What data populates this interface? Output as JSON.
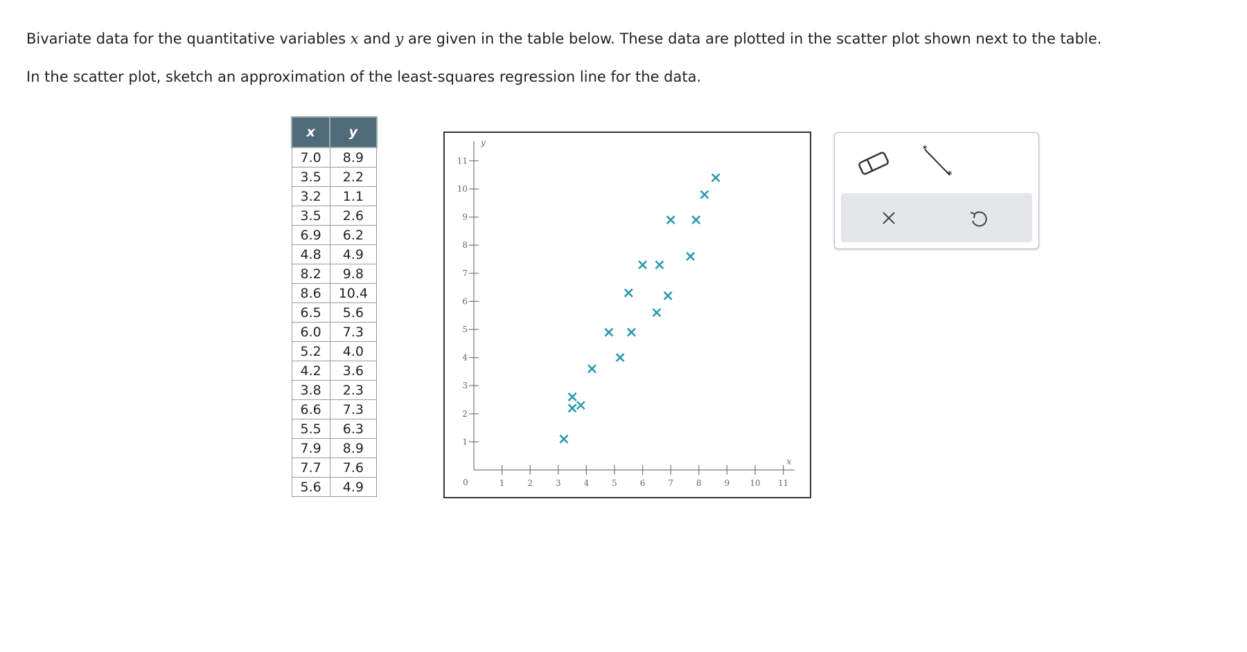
{
  "prompt": {
    "line1": [
      "Bivariate data for the quantitative variables ",
      "x",
      " and ",
      "y",
      " are given in the table below. These data are plotted in the scatter plot shown next to the table."
    ],
    "line2": "In the scatter plot, sketch an approximation of the least-squares regression line for the data."
  },
  "table": {
    "header": [
      "x",
      "y"
    ],
    "rows": [
      [
        "7.0",
        "8.9"
      ],
      [
        "3.5",
        "2.2"
      ],
      [
        "3.2",
        "1.1"
      ],
      [
        "3.5",
        "2.6"
      ],
      [
        "6.9",
        "6.2"
      ],
      [
        "4.8",
        "4.9"
      ],
      [
        "8.2",
        "9.8"
      ],
      [
        "8.6",
        "10.4"
      ],
      [
        "6.5",
        "5.6"
      ],
      [
        "6.0",
        "7.3"
      ],
      [
        "5.2",
        "4.0"
      ],
      [
        "4.2",
        "3.6"
      ],
      [
        "3.8",
        "2.3"
      ],
      [
        "6.6",
        "7.3"
      ],
      [
        "5.5",
        "6.3"
      ],
      [
        "7.9",
        "8.9"
      ],
      [
        "7.7",
        "7.6"
      ],
      [
        "5.6",
        "4.9"
      ]
    ]
  },
  "chart_data": {
    "type": "scatter",
    "x_label": "x",
    "y_label": "y",
    "origin": 0,
    "x": [
      7.0,
      3.5,
      3.2,
      3.5,
      6.9,
      4.8,
      8.2,
      8.6,
      6.5,
      6.0,
      5.2,
      4.2,
      3.8,
      6.6,
      5.5,
      7.9,
      7.7,
      5.6
    ],
    "y": [
      8.9,
      2.2,
      1.1,
      2.6,
      6.2,
      4.9,
      9.8,
      10.4,
      5.6,
      7.3,
      4.0,
      3.6,
      2.3,
      7.3,
      6.3,
      8.9,
      7.6,
      4.9
    ],
    "color": "#2a9aad",
    "xlim": [
      0,
      11.4
    ],
    "ylim": [
      0,
      11.7
    ],
    "xticks": [
      1,
      2,
      3,
      4,
      5,
      6,
      7,
      8,
      9,
      10,
      11
    ],
    "yticks": [
      1,
      2,
      3,
      4,
      5,
      6,
      7,
      8,
      9,
      10,
      11
    ]
  }
}
